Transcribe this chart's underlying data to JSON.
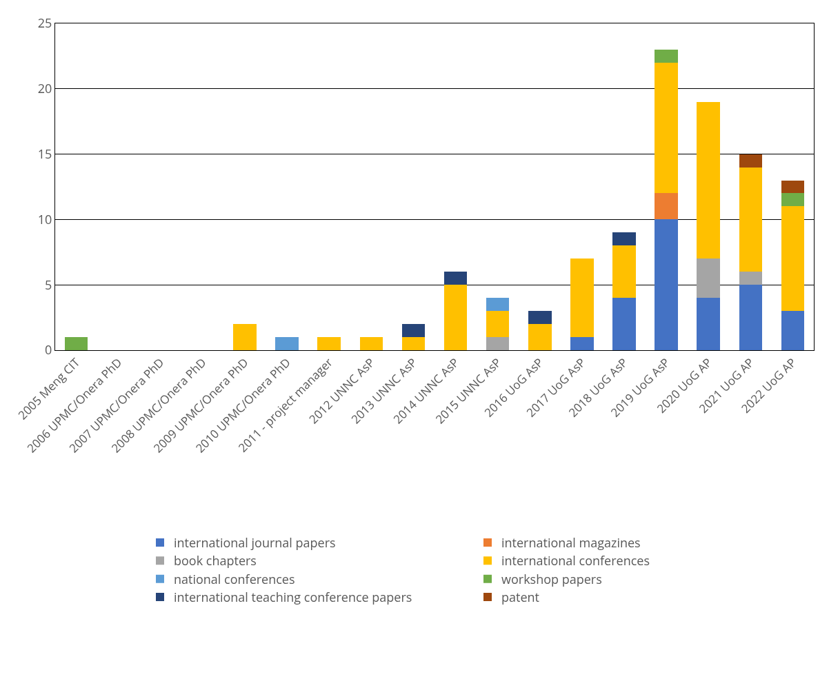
{
  "chart_data": {
    "type": "bar",
    "stacked": true,
    "categories": [
      "2005 Meng CIT",
      "2006 UPMC/Onera PhD",
      "2007 UPMC/Onera PhD",
      "2008 UPMC/Onera PhD",
      "2009 UPMC/Onera PhD",
      "2010 UPMC/Onera PhD",
      "2011 - project manager",
      "2012 UNNC AsP",
      "2013 UNNC AsP",
      "2014 UNNC AsP",
      "2015 UNNC AsP",
      "2016 UoG AsP",
      "2017 UoG AsP",
      "2018 UoG AsP",
      "2019 UoG AsP",
      "2020 UoG AP",
      "2021 UoG AP",
      "2022 UoG AP"
    ],
    "series": [
      {
        "name": "international journal papers",
        "color": "#4472c4",
        "values": [
          null,
          null,
          null,
          null,
          null,
          null,
          null,
          null,
          null,
          null,
          null,
          null,
          1,
          4,
          10,
          4,
          5,
          3
        ]
      },
      {
        "name": "international magazines",
        "color": "#ed7d31",
        "values": [
          null,
          null,
          null,
          null,
          null,
          null,
          null,
          null,
          null,
          null,
          null,
          null,
          null,
          null,
          2,
          null,
          null,
          null
        ]
      },
      {
        "name": "book chapters",
        "color": "#a5a5a5",
        "values": [
          null,
          null,
          null,
          null,
          null,
          null,
          null,
          null,
          null,
          null,
          1,
          null,
          null,
          null,
          null,
          3,
          1,
          null
        ]
      },
      {
        "name": "international conferences",
        "color": "#ffc000",
        "values": [
          null,
          null,
          null,
          null,
          2,
          null,
          1,
          1,
          1,
          5,
          2,
          2,
          6,
          4,
          10,
          12,
          8,
          8
        ]
      },
      {
        "name": "national conferences",
        "color": "#5b9bd5",
        "values": [
          null,
          null,
          null,
          null,
          null,
          1,
          null,
          null,
          null,
          null,
          1,
          null,
          null,
          null,
          null,
          null,
          null,
          null
        ]
      },
      {
        "name": "workshop papers",
        "color": "#70ad47",
        "values": [
          1,
          null,
          null,
          null,
          null,
          null,
          null,
          null,
          null,
          null,
          null,
          null,
          null,
          null,
          1,
          null,
          null,
          1
        ]
      },
      {
        "name": "international teaching conference papers",
        "color": "#264478",
        "values": [
          null,
          null,
          null,
          null,
          null,
          null,
          null,
          null,
          1,
          1,
          null,
          1,
          null,
          1,
          null,
          null,
          null,
          null
        ]
      },
      {
        "name": "patent",
        "color": "#9e480e",
        "values": [
          null,
          null,
          null,
          null,
          null,
          null,
          null,
          null,
          null,
          null,
          null,
          null,
          null,
          null,
          null,
          null,
          1,
          1
        ]
      }
    ],
    "ylim": [
      0,
      25
    ],
    "yticks": [
      0,
      5,
      10,
      15,
      20,
      25
    ],
    "grid": "y",
    "legend": "bottom"
  }
}
